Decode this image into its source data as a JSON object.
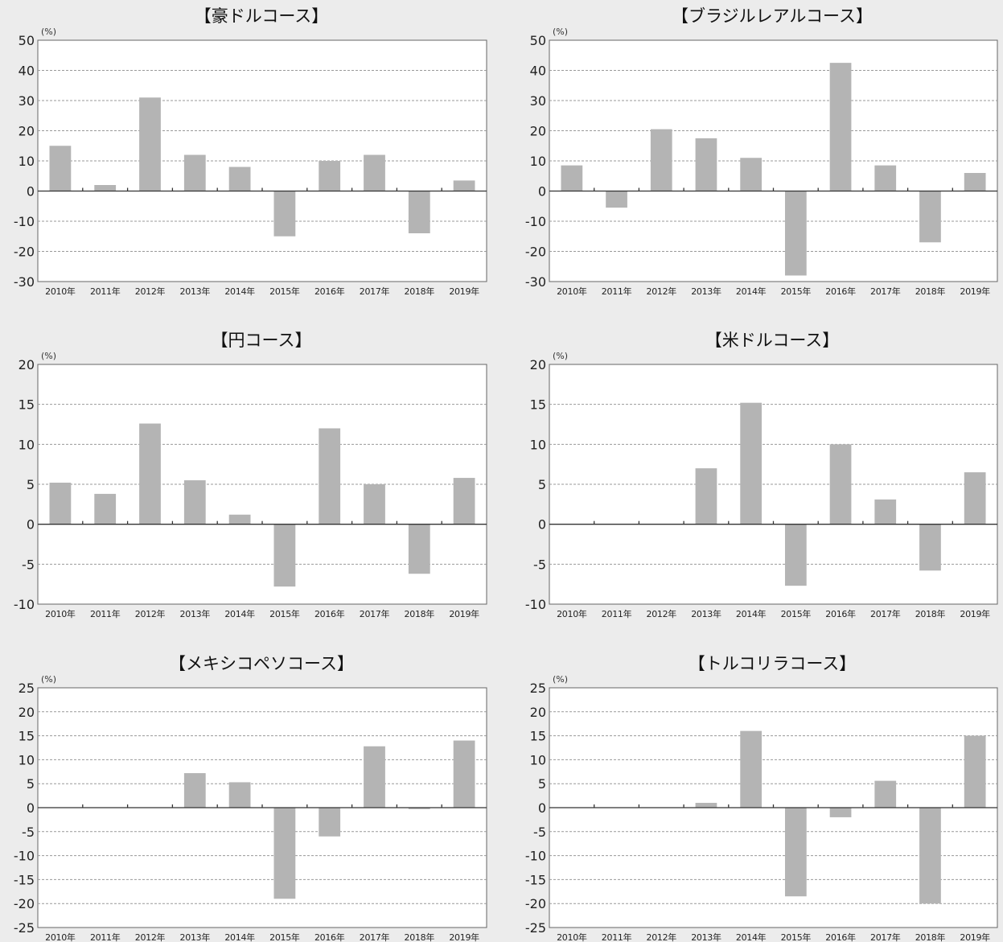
{
  "chart_data": [
    {
      "type": "bar",
      "title": "【豪ドルコース】",
      "ylabel": "(%)",
      "categories": [
        "2010年",
        "2011年",
        "2012年",
        "2013年",
        "2014年",
        "2015年",
        "2016年",
        "2017年",
        "2018年",
        "2019年"
      ],
      "values": [
        15,
        2,
        31,
        12,
        8,
        -15,
        10,
        12,
        -14,
        3.5
      ],
      "ylim": [
        -30,
        50
      ],
      "yticks": [
        50,
        40,
        30,
        20,
        10,
        0,
        -10,
        -20,
        -30
      ],
      "grid": true
    },
    {
      "type": "bar",
      "title": "【ブラジルレアルコース】",
      "ylabel": "(%)",
      "categories": [
        "2010年",
        "2011年",
        "2012年",
        "2013年",
        "2014年",
        "2015年",
        "2016年",
        "2017年",
        "2018年",
        "2019年"
      ],
      "values": [
        8.5,
        -5.5,
        20.5,
        17.5,
        11,
        -28,
        42.5,
        8.5,
        -17,
        6
      ],
      "ylim": [
        -30,
        50
      ],
      "yticks": [
        50,
        40,
        30,
        20,
        10,
        0,
        -10,
        -20,
        -30
      ],
      "grid": true
    },
    {
      "type": "bar",
      "title": "【円コース】",
      "ylabel": "(%)",
      "categories": [
        "2010年",
        "2011年",
        "2012年",
        "2013年",
        "2014年",
        "2015年",
        "2016年",
        "2017年",
        "2018年",
        "2019年"
      ],
      "values": [
        5.2,
        3.8,
        12.6,
        5.5,
        1.2,
        -7.8,
        12,
        5,
        -6.2,
        5.8
      ],
      "ylim": [
        -10,
        20
      ],
      "yticks": [
        20,
        15,
        10,
        5,
        0,
        -5,
        -10
      ],
      "grid": true
    },
    {
      "type": "bar",
      "title": "【米ドルコース】",
      "ylabel": "(%)",
      "categories": [
        "2010年",
        "2011年",
        "2012年",
        "2013年",
        "2014年",
        "2015年",
        "2016年",
        "2017年",
        "2018年",
        "2019年"
      ],
      "values": [
        null,
        null,
        null,
        7,
        15.2,
        -7.7,
        10,
        3.1,
        -5.8,
        6.5
      ],
      "ylim": [
        -10,
        20
      ],
      "yticks": [
        20,
        15,
        10,
        5,
        0,
        -5,
        -10
      ],
      "grid": true
    },
    {
      "type": "bar",
      "title": "【メキシコペソコース】",
      "ylabel": "(%)",
      "categories": [
        "2010年",
        "2011年",
        "2012年",
        "2013年",
        "2014年",
        "2015年",
        "2016年",
        "2017年",
        "2018年",
        "2019年"
      ],
      "values": [
        null,
        null,
        null,
        7.2,
        5.3,
        -19,
        -6,
        12.8,
        -0.3,
        14
      ],
      "ylim": [
        -25,
        25
      ],
      "yticks": [
        25,
        20,
        15,
        10,
        5,
        0,
        -5,
        -10,
        -15,
        -20,
        -25
      ],
      "grid": true
    },
    {
      "type": "bar",
      "title": "【トルコリラコース】",
      "ylabel": "(%)",
      "categories": [
        "2010年",
        "2011年",
        "2012年",
        "2013年",
        "2014年",
        "2015年",
        "2016年",
        "2017年",
        "2018年",
        "2019年"
      ],
      "values": [
        null,
        null,
        null,
        1,
        16,
        -18.5,
        -2,
        5.6,
        -20,
        15
      ],
      "ylim": [
        -25,
        25
      ],
      "yticks": [
        25,
        20,
        15,
        10,
        5,
        0,
        -5,
        -10,
        -15,
        -20,
        -25
      ],
      "grid": true
    }
  ]
}
